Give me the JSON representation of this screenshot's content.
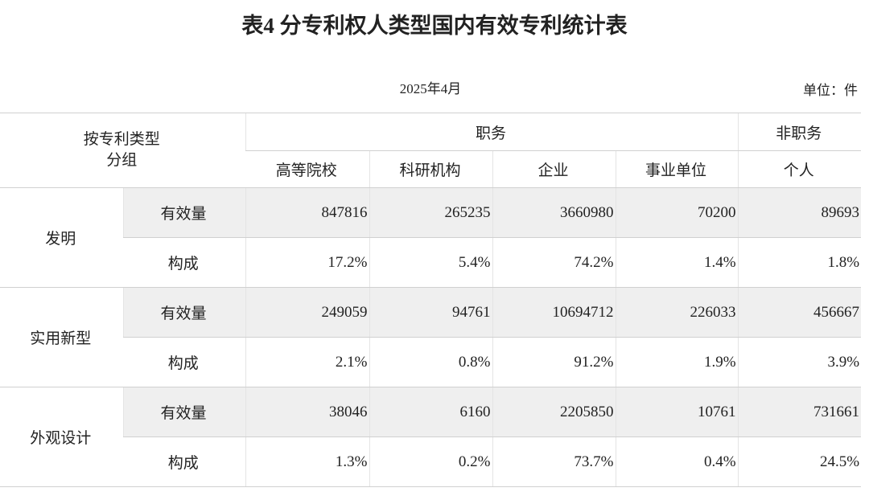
{
  "header": {
    "title": "表4 分专利权人类型国内有效专利统计表",
    "date": "2025年4月",
    "unit": "单位：件"
  },
  "table": {
    "group_header": "按专利类型分组",
    "column_groups": [
      "职务",
      "非职务"
    ],
    "columns": [
      "高等院校",
      "科研机构",
      "企业",
      "事业单位",
      "个人"
    ],
    "rows": [
      {
        "group": "发明",
        "metrics": [
          {
            "label": "有效量",
            "values": [
              847816,
              265235,
              3660980,
              70200,
              89693
            ]
          },
          {
            "label": "构成",
            "values": [
              "17.2%",
              "5.4%",
              "74.2%",
              "1.4%",
              "1.8%"
            ]
          }
        ]
      },
      {
        "group": "实用新型",
        "metrics": [
          {
            "label": "有效量",
            "values": [
              249059,
              94761,
              10694712,
              226033,
              456667
            ]
          },
          {
            "label": "构成",
            "values": [
              "2.1%",
              "0.8%",
              "91.2%",
              "1.9%",
              "3.9%"
            ]
          }
        ]
      },
      {
        "group": "外观设计",
        "metrics": [
          {
            "label": "有效量",
            "values": [
              38046,
              6160,
              2205850,
              10761,
              731661
            ]
          },
          {
            "label": "构成",
            "values": [
              "1.3%",
              "0.2%",
              "73.7%",
              "0.4%",
              "24.5%"
            ]
          }
        ]
      }
    ]
  }
}
